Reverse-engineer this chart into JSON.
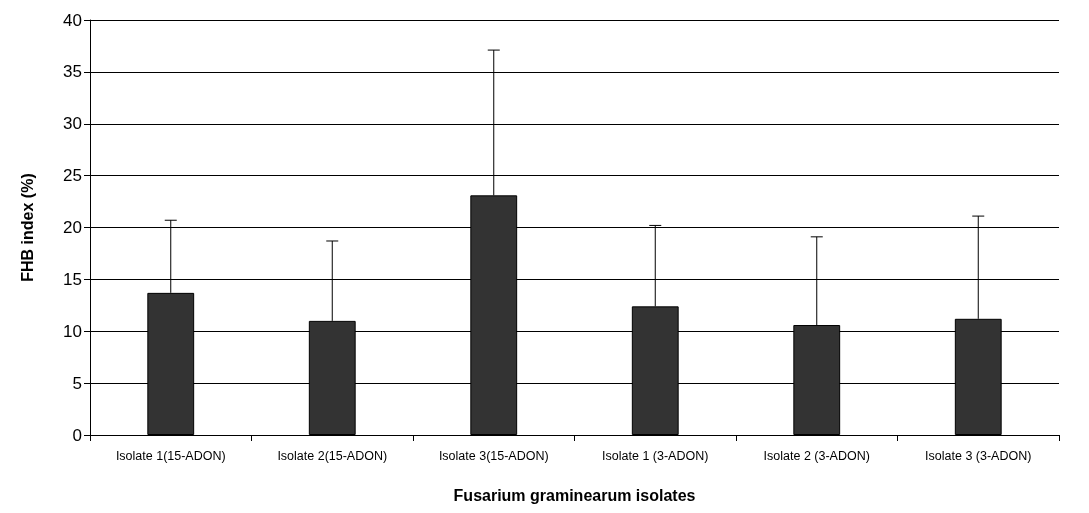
{
  "chart_data": {
    "type": "bar",
    "xlabel": "Fusarium graminearum isolates",
    "ylabel": "FHB index (%)",
    "categories": [
      "Isolate 1(15-ADON)",
      "Isolate 2(15-ADON)",
      "Isolate 3(15-ADON)",
      "Isolate 1 (3-ADON)",
      "Isolate 2 (3-ADON)",
      "Isolate 3 (3-ADON)"
    ],
    "values": [
      13.7,
      11.0,
      23.1,
      12.4,
      10.6,
      11.2
    ],
    "errors": [
      [
        13.7,
        20.7
      ],
      [
        11.0,
        18.7
      ],
      [
        23.1,
        37.1
      ],
      [
        12.4,
        20.2
      ],
      [
        10.6,
        19.1
      ],
      [
        11.2,
        21.1
      ]
    ],
    "color": "#333333",
    "ylim": [
      0,
      40
    ],
    "yticks": [
      0,
      5,
      10,
      15,
      20,
      25,
      30,
      35,
      40
    ],
    "grid": "y"
  }
}
